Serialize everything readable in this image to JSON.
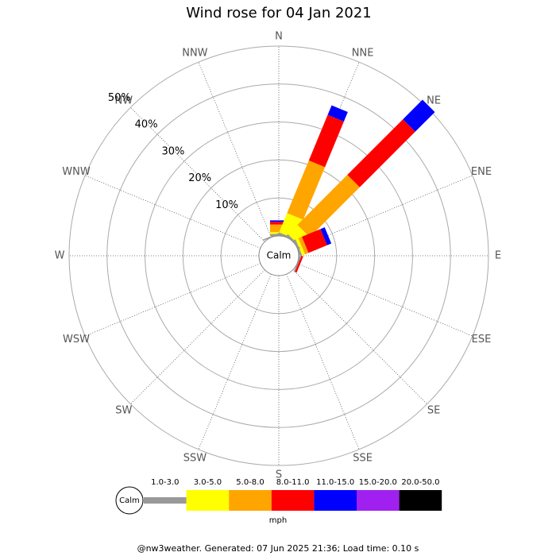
{
  "chart_data": {
    "type": "windrose",
    "title": "Wind rose for 04 Jan 2021",
    "categories": [
      "N",
      "NNE",
      "NE",
      "ENE",
      "E",
      "ESE",
      "SE",
      "SSE",
      "S",
      "SSW",
      "SW",
      "WSW",
      "W",
      "WNW",
      "NW",
      "NNW"
    ],
    "series": [
      {
        "name": "1.0-3.0",
        "color": "#999999",
        "values": [
          0.5,
          0.5,
          0.5,
          0.5,
          0.3,
          0.3,
          0,
          0,
          0,
          0,
          0,
          0,
          0,
          0,
          0,
          0.3
        ]
      },
      {
        "name": "3.0-5.0",
        "color": "#ffff00",
        "values": [
          0.5,
          5.5,
          3.5,
          0.8,
          0,
          0,
          0,
          0,
          0,
          0,
          0,
          0,
          0,
          0,
          0,
          0
        ]
      },
      {
        "name": "5.0-8.0",
        "color": "#ffa500",
        "values": [
          2,
          15,
          18.6,
          1,
          0,
          0,
          0,
          0,
          0,
          0,
          0,
          0,
          0,
          0,
          0,
          0
        ]
      },
      {
        "name": "8.0-11.0",
        "color": "#ff0000",
        "values": [
          0.7,
          13,
          20.7,
          5.3,
          0,
          0.5,
          0,
          0,
          0,
          0,
          0,
          0,
          0,
          0,
          0,
          0
        ]
      },
      {
        "name": "11.0-15.0",
        "color": "#0000ff",
        "values": [
          0.4,
          2.7,
          7.3,
          1.2,
          0,
          0,
          0,
          0,
          0,
          0,
          0,
          0,
          0,
          0,
          0,
          0
        ]
      },
      {
        "name": "15.0-20.0",
        "color": "#a020f0",
        "values": [
          0,
          0,
          0,
          0,
          0,
          0,
          0,
          0,
          0,
          0,
          0,
          0,
          0,
          0,
          0,
          0
        ]
      },
      {
        "name": "20.0-50.0",
        "color": "#000000",
        "values": [
          0,
          0,
          0,
          0,
          0,
          0,
          0,
          0,
          0,
          0,
          0,
          0,
          0,
          0,
          0,
          0
        ]
      }
    ],
    "rlim": [
      0,
      50
    ],
    "rticks": [
      {
        "value": 10,
        "label": "10%"
      },
      {
        "value": 20,
        "label": "20%"
      },
      {
        "value": 30,
        "label": "30%"
      },
      {
        "value": 40,
        "label": "40%"
      },
      {
        "value": 50,
        "label": "50%"
      }
    ],
    "calm_label": "Calm",
    "legend_unit": "mph",
    "footer": "@nw3weather. Generated: 07 Jun 2025 21:36; Load time: 0.10 s"
  }
}
